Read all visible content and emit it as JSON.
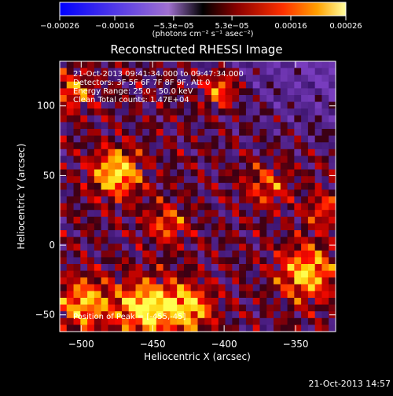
{
  "chart_data": {
    "type": "heatmap",
    "title": "Reconstructed RHESSI Image",
    "xlabel": "Heliocentric X (arcsec)",
    "ylabel": "Heliocentric Y (arcsec)",
    "xlim": [
      -515,
      -322
    ],
    "ylim": [
      -62,
      132
    ],
    "x_ticks": [
      -500,
      -450,
      -400,
      -350
    ],
    "y_ticks": [
      -50,
      0,
      50,
      100
    ],
    "x_tick_labels": [
      "−500",
      "−450",
      "−400",
      "−350"
    ],
    "y_tick_labels": [
      "−50",
      "0",
      "50",
      "100"
    ],
    "colorbar": {
      "ticks": [
        -0.00026,
        -0.00016,
        -5.3e-05,
        5.3e-05,
        0.00016,
        0.00026
      ],
      "tick_labels": [
        "−0.00026",
        "−0.00016",
        "−5.3e−05",
        "5.3e−05",
        "0.00016",
        "0.00026"
      ],
      "range": [
        -0.00026,
        0.00026
      ],
      "unit_label": "(photons cm⁻² s⁻¹ asec⁻²)"
    },
    "annotations": [
      "21-Oct-2013 09:41:34.000 to 09:47:34.000",
      "Detectors: 3F 5F 6F 7F 8F 9F, Att 0",
      "Energy Range: 25.0 - 50.0 keV",
      "Clean    Total counts: 1.47E+04"
    ],
    "peak_label": "Position of Peak = [-455,-45]",
    "peak": [
      -455,
      -45
    ],
    "sources": [
      {
        "x": -475,
        "y": 52,
        "amp": 0.95,
        "sigma": 12
      },
      {
        "x": -455,
        "y": -45,
        "amp": 1.0,
        "sigma": 14
      },
      {
        "x": -498,
        "y": -42,
        "amp": 0.8,
        "sigma": 13
      },
      {
        "x": -425,
        "y": -45,
        "amp": 0.85,
        "sigma": 12
      },
      {
        "x": -342,
        "y": -20,
        "amp": 0.85,
        "sigma": 14
      },
      {
        "x": -402,
        "y": 112,
        "amp": 0.75,
        "sigma": 9
      },
      {
        "x": -440,
        "y": 15,
        "amp": 0.55,
        "sigma": 10
      },
      {
        "x": -505,
        "y": 110,
        "amp": 0.6,
        "sigma": 10
      },
      {
        "x": -370,
        "y": 42,
        "amp": 0.5,
        "sigma": 11
      },
      {
        "x": -330,
        "y": 25,
        "amp": 0.5,
        "sigma": 9
      }
    ]
  },
  "timestamp": "21-Oct-2013 14:57",
  "colors": {
    "background": "#000000",
    "text": "#ffffff"
  }
}
